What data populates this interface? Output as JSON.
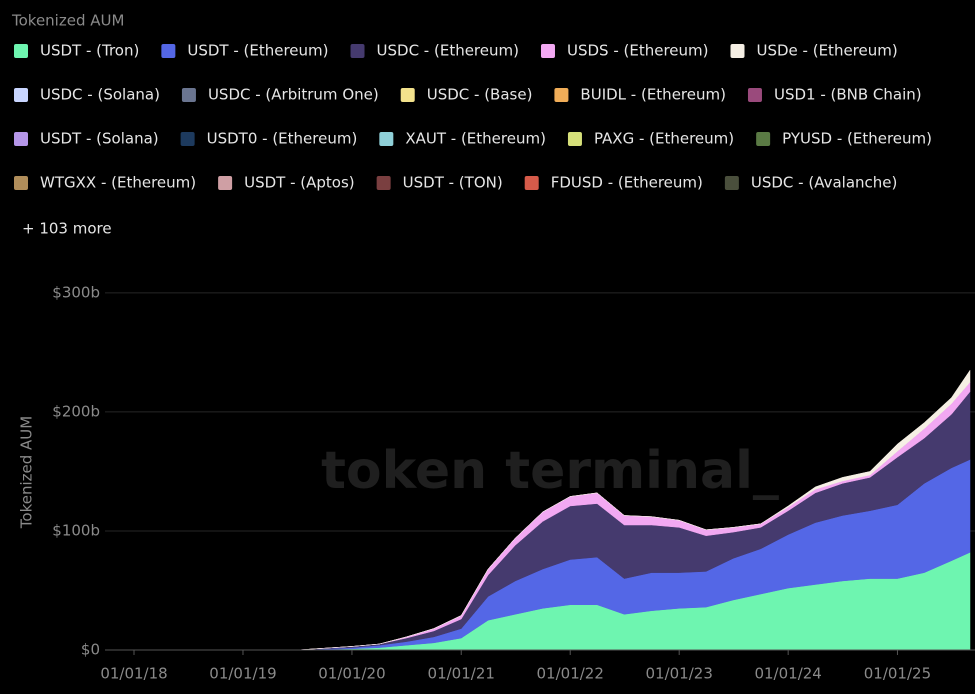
{
  "chart_data": {
    "type": "area",
    "stacked": true,
    "title": "Tokenized AUM",
    "y_label": "Tokenized AUM",
    "watermark": "token terminal_",
    "more_label": "+ 103 more",
    "x": [
      "01/01/18",
      "07/01/19",
      "01/01/20",
      "04/01/20",
      "07/01/20",
      "10/01/20",
      "01/01/21",
      "04/01/21",
      "07/01/21",
      "10/01/21",
      "01/01/22",
      "04/01/22",
      "07/01/22",
      "10/01/22",
      "01/01/23",
      "04/01/23",
      "07/01/23",
      "10/01/23",
      "01/01/24",
      "04/01/24",
      "07/01/24",
      "10/01/24",
      "01/01/25",
      "04/01/25",
      "07/01/25",
      "09/01/25"
    ],
    "xlim": [
      "01/01/18",
      "09/01/25"
    ],
    "xticks": [
      "01/01/18",
      "01/01/19",
      "01/01/20",
      "01/01/21",
      "01/01/22",
      "01/01/23",
      "01/01/24",
      "01/01/25"
    ],
    "ylim": [
      0,
      315
    ],
    "yticks": [
      {
        "value": 0,
        "label": "$0"
      },
      {
        "value": 100,
        "label": "$100b"
      },
      {
        "value": 200,
        "label": "$200b"
      },
      {
        "value": 300,
        "label": "$300b"
      }
    ],
    "grid": true,
    "series": [
      {
        "name": "USDT - (Tron)",
        "color": "#6ef5b0",
        "values": [
          0,
          0,
          1,
          2,
          4,
          6,
          10,
          25,
          30,
          35,
          38,
          38,
          30,
          33,
          35,
          36,
          42,
          47,
          52,
          55,
          58,
          60,
          60,
          65,
          75,
          82
        ]
      },
      {
        "name": "USDT - (Ethereum)",
        "color": "#5467e6",
        "values": [
          0,
          0,
          1,
          2,
          3,
          5,
          8,
          20,
          28,
          33,
          38,
          40,
          30,
          32,
          30,
          30,
          35,
          38,
          45,
          52,
          55,
          57,
          62,
          75,
          78,
          78
        ]
      },
      {
        "name": "USDC - (Ethereum)",
        "color": "#453a6e",
        "values": [
          0,
          0,
          1,
          1,
          3,
          5,
          8,
          18,
          30,
          40,
          45,
          45,
          45,
          40,
          38,
          30,
          22,
          18,
          20,
          25,
          27,
          28,
          40,
          38,
          45,
          57
        ]
      },
      {
        "name": "USDS - (Ethereum)",
        "color": "#f2a8f2",
        "values": [
          0,
          0,
          0,
          0,
          1,
          2,
          3,
          5,
          6,
          8,
          8,
          9,
          8,
          7,
          6,
          5,
          4,
          3,
          3,
          3,
          2,
          2,
          5,
          8,
          9,
          8
        ]
      },
      {
        "name": "USDe - (Ethereum)",
        "color": "#f5efe4",
        "values": [
          0,
          0,
          0,
          0,
          0,
          0,
          0,
          0,
          0,
          0,
          0,
          0,
          0,
          0,
          0,
          0,
          0,
          0,
          1,
          2,
          3,
          3,
          6,
          5,
          5,
          10
        ]
      }
    ],
    "more_legend": [
      {
        "name": "USDC - (Solana)",
        "color": "#c9d6ff"
      },
      {
        "name": "USDC - (Arbitrum One)",
        "color": "#6a7590"
      },
      {
        "name": "USDC - (Base)",
        "color": "#f3e28c"
      },
      {
        "name": "BUIDL - (Ethereum)",
        "color": "#f0ad58"
      },
      {
        "name": "USD1 - (BNB Chain)",
        "color": "#9a4a7c"
      },
      {
        "name": "USDT - (Solana)",
        "color": "#b596e8"
      },
      {
        "name": "USDT0 - (Ethereum)",
        "color": "#1d3a5e"
      },
      {
        "name": "XAUT - (Ethereum)",
        "color": "#8fd0d8"
      },
      {
        "name": "PAXG - (Ethereum)",
        "color": "#d6e07a"
      },
      {
        "name": "PYUSD - (Ethereum)",
        "color": "#5a7a44"
      },
      {
        "name": "WTGXX - (Ethereum)",
        "color": "#b08d5a"
      },
      {
        "name": "USDT - (Aptos)",
        "color": "#cf9fa4"
      },
      {
        "name": "USDT - (TON)",
        "color": "#7a3f40"
      },
      {
        "name": "FDUSD - (Ethereum)",
        "color": "#d65b4a"
      },
      {
        "name": "USDC - (Avalanche)",
        "color": "#4a4f3c"
      }
    ]
  }
}
